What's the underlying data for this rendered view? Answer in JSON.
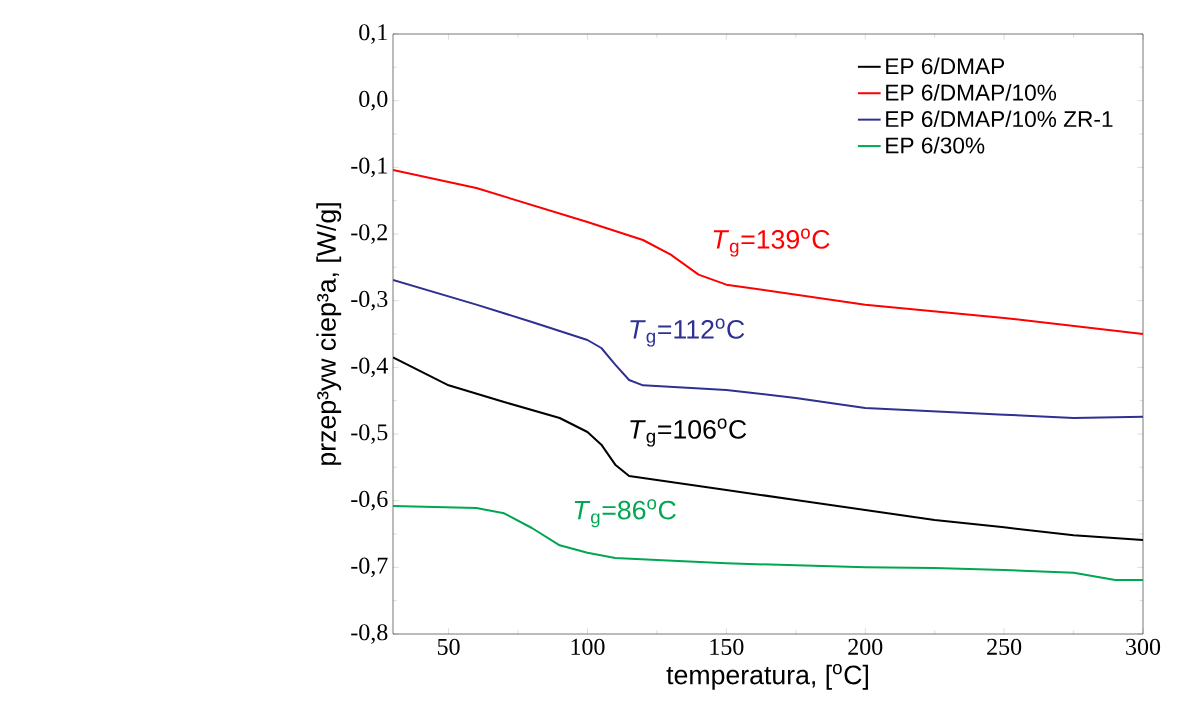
{
  "chart_data": {
    "type": "line",
    "xlabel": "temperatura, [$^{o}$C]",
    "ylabel": "przep³yw ciep³a, [W/g]",
    "xlim": [
      30,
      300
    ],
    "xticks": [
      50,
      100,
      150,
      200,
      250,
      300
    ],
    "ylim": [
      -0.8,
      0.1
    ],
    "yticks": [
      {
        "value": -0.8,
        "label": "-0,8"
      },
      {
        "value": -0.7,
        "label": "-0,7"
      },
      {
        "value": -0.6,
        "label": "-0,6"
      },
      {
        "value": -0.5,
        "label": "-0,5"
      },
      {
        "value": -0.4,
        "label": "-0,4"
      },
      {
        "value": -0.3,
        "label": "-0,3"
      },
      {
        "value": -0.2,
        "label": "-0,2"
      },
      {
        "value": -0.1,
        "label": "-0,1"
      },
      {
        "value": 0.0,
        "label": "0,0"
      },
      {
        "value": 0.1,
        "label": "0,1"
      }
    ],
    "legend": "top right",
    "grid": false,
    "marker": "none",
    "line_style": "solid",
    "series": [
      {
        "name": "EP 6/DMAP",
        "color": "#000000",
        "x": [
          30,
          50,
          70,
          90,
          100,
          105,
          110,
          115,
          125,
          150,
          175,
          200,
          225,
          250,
          275,
          300
        ],
        "values": [
          -0.385,
          -0.427,
          -0.452,
          -0.476,
          -0.497,
          -0.516,
          -0.546,
          -0.563,
          -0.569,
          -0.584,
          -0.599,
          -0.614,
          -0.629,
          -0.64,
          -0.652,
          -0.659
        ]
      },
      {
        "name": "EP 6/DMAP/10%",
        "color": "#ff0000",
        "x": [
          30,
          60,
          100,
          120,
          130,
          140,
          150,
          175,
          200,
          250,
          300
        ],
        "values": [
          -0.104,
          -0.131,
          -0.182,
          -0.209,
          -0.231,
          -0.261,
          -0.276,
          -0.291,
          -0.306,
          -0.326,
          -0.35
        ]
      },
      {
        "name": "EP 6/DMAP/10% ZR-1",
        "color": "#2e3192",
        "x": [
          30,
          60,
          80,
          100,
          105,
          110,
          115,
          120,
          150,
          175,
          200,
          250,
          275,
          300
        ],
        "values": [
          -0.269,
          -0.306,
          -0.332,
          -0.359,
          -0.371,
          -0.396,
          -0.419,
          -0.427,
          -0.434,
          -0.446,
          -0.461,
          -0.471,
          -0.476,
          -0.474
        ]
      },
      {
        "name": "EP 6/30%",
        "color": "#00a651",
        "x": [
          30,
          60,
          70,
          80,
          90,
          100,
          110,
          125,
          150,
          200,
          225,
          250,
          275,
          290,
          300
        ],
        "values": [
          -0.608,
          -0.611,
          -0.619,
          -0.641,
          -0.667,
          -0.678,
          -0.686,
          -0.689,
          -0.694,
          -0.7,
          -0.701,
          -0.704,
          -0.708,
          -0.719,
          -0.719
        ]
      }
    ],
    "annotations": [
      "*T*$_{g}$=106$^{o}$C",
      "*T*$_{g}$=139$^{o}$C",
      "*T*$_{g}$=112$^{o}$C",
      "*T*$_{g}$=86$^{o}$C"
    ]
  }
}
